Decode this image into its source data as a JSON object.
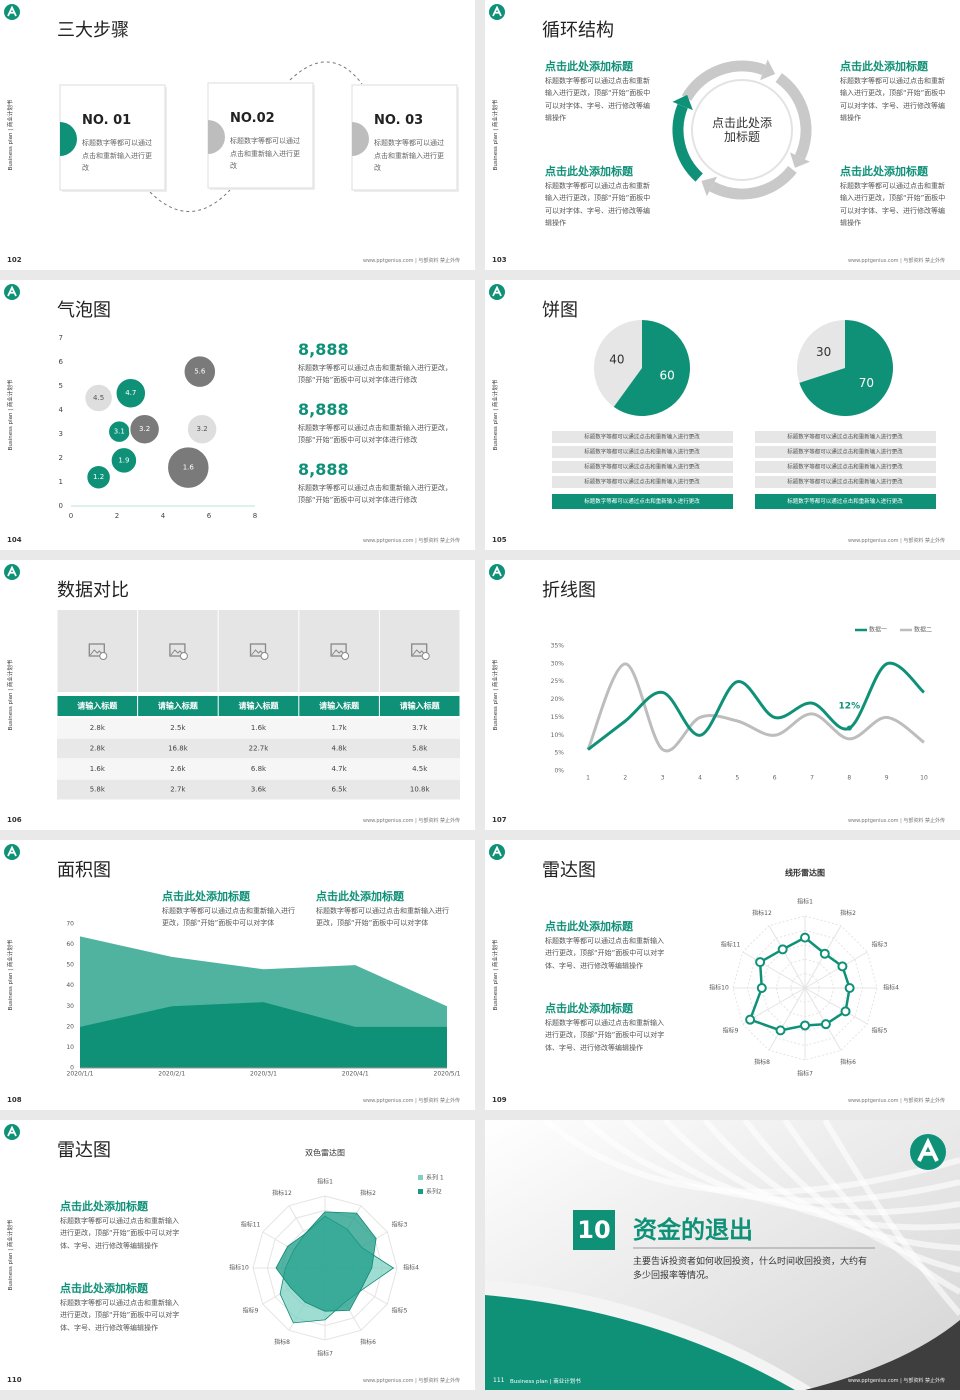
{
  "side_label": "Business plan | 商业计划书",
  "footer": "www.pptgenius.com | 与部资料 禁止外传",
  "slides": [
    {
      "type": "steps",
      "page": "102",
      "title": "三大步骤",
      "steps": [
        {
          "no": "NO. 01",
          "text": "标题数字等都可以通过点击和重新输入进行更改"
        },
        {
          "no": "NO.02",
          "text": "标题数字等都可以通过点击和重新输入进行更改"
        },
        {
          "no": "NO. 03",
          "text": "标题数字等都可以通过点击和重新输入进行更改"
        }
      ]
    },
    {
      "type": "cycle",
      "page": "103",
      "title": "循环结构",
      "center": "点击此处添加标题",
      "blocks": [
        {
          "heading": "点击此处添加标题",
          "text": "标题数字等都可以通过点击和重新输入进行更改，顶部“开始”面板中可以对字体、字号、进行修改等编辑操作"
        },
        {
          "heading": "点击此处添加标题",
          "text": "标题数字等都可以通过点击和重新输入进行更改，顶部“开始”面板中可以对字体、字号、进行修改等编辑操作"
        },
        {
          "heading": "点击此处添加标题",
          "text": "标题数字等都可以通过点击和重新输入进行更改，顶部“开始”面板中可以对字体、字号、进行修改等编辑操作"
        },
        {
          "heading": "点击此处添加标题",
          "text": "标题数字等都可以通过点击和重新输入进行更改，顶部“开始”面板中可以对字体、字号、进行修改等编辑操作"
        }
      ]
    },
    {
      "type": "bubble",
      "page": "104",
      "title": "气泡图",
      "chart": {
        "type": "scatter",
        "xlim": [
          0,
          8
        ],
        "xticks": [
          0,
          2,
          4,
          6,
          8
        ],
        "ylim": [
          0,
          7
        ],
        "yticks": [
          0,
          1,
          2,
          3,
          4,
          5,
          6,
          7
        ],
        "points": [
          {
            "x": 1.2,
            "y": 1.2,
            "size": 12,
            "color": "#0f9178"
          },
          {
            "x": 2.3,
            "y": 1.9,
            "size": 13,
            "color": "#0f9178"
          },
          {
            "x": 2.1,
            "y": 3.1,
            "size": 11,
            "color": "#0f9178"
          },
          {
            "x": 3.2,
            "y": 3.2,
            "size": 15,
            "color": "#7a7a7a"
          },
          {
            "x": 1.2,
            "y": 4.5,
            "size": 14,
            "color": "#dedede"
          },
          {
            "x": 2.6,
            "y": 4.7,
            "size": 15,
            "color": "#0f9178"
          },
          {
            "x": 5.6,
            "y": 5.6,
            "size": 16,
            "color": "#7a7a7a"
          },
          {
            "x": 5.7,
            "y": 3.2,
            "size": 15,
            "color": "#dedede"
          },
          {
            "x": 5.1,
            "y": 1.6,
            "size": 21,
            "color": "#7a7a7a"
          }
        ]
      },
      "stats": [
        {
          "value": "8,888",
          "text": "标题数字等都可以通过点击和重新输入进行更改，顶部“开始”面板中可以对字体进行修改"
        },
        {
          "value": "8,888",
          "text": "标题数字等都可以通过点击和重新输入进行更改，顶部“开始”面板中可以对字体进行修改"
        },
        {
          "value": "8,888",
          "text": "标题数字等都可以通过点击和重新输入进行更改，顶部“开始”面板中可以对字体进行修改"
        }
      ]
    },
    {
      "type": "pies",
      "page": "105",
      "title": "饼图",
      "pies": [
        {
          "values": [
            40,
            60
          ],
          "colors": [
            "#e6e6e6",
            "#0f9178"
          ],
          "rows": [
            "标题数字等都可以通过点击和重新输入进行更改",
            "标题数字等都可以通过点击和重新输入进行更改",
            "标题数字等都可以通过点击和重新输入进行更改",
            "标题数字等都可以通过点击和重新输入进行更改",
            "标题数字等都可以通过点击和重新输入进行更改"
          ]
        },
        {
          "values": [
            30,
            70
          ],
          "colors": [
            "#e6e6e6",
            "#0f9178"
          ],
          "rows": [
            "标题数字等都可以通过点击和重新输入进行更改",
            "标题数字等都可以通过点击和重新输入进行更改",
            "标题数字等都可以通过点击和重新输入进行更改",
            "标题数字等都可以通过点击和重新输入进行更改",
            "标题数字等都可以通过点击和重新输入进行更改"
          ]
        }
      ]
    },
    {
      "type": "table",
      "page": "106",
      "title": "数据对比",
      "table": {
        "header": [
          "请输入标题",
          "请输入标题",
          "请输入标题",
          "请输入标题",
          "请输入标题"
        ],
        "rows": [
          [
            "2.8k",
            "2.5k",
            "1.6k",
            "1.7k",
            "3.7k"
          ],
          [
            "2.8k",
            "16.8k",
            "22.7k",
            "4.8k",
            "5.8k"
          ],
          [
            "1.6k",
            "2.6k",
            "6.8k",
            "4.7k",
            "4.5k"
          ],
          [
            "5.8k",
            "2.7k",
            "3.6k",
            "6.5k",
            "10.8k"
          ]
        ]
      }
    },
    {
      "type": "line",
      "page": "107",
      "title": "折线图",
      "chart": {
        "type": "line",
        "x": [
          1,
          2,
          3,
          4,
          5,
          6,
          7,
          8,
          9,
          10
        ],
        "xlim": [
          1,
          10
        ],
        "xticks": [
          1,
          2,
          3,
          4,
          5,
          6,
          7,
          8,
          9,
          10
        ],
        "ylim": [
          0,
          35
        ],
        "yticks": [
          {
            "value": 0,
            "label": "0%"
          },
          {
            "value": 5,
            "label": "5%"
          },
          {
            "value": 10,
            "label": "10%"
          },
          {
            "value": 15,
            "label": "15%"
          },
          {
            "value": 20,
            "label": "20%"
          },
          {
            "value": 25,
            "label": "25%"
          },
          {
            "value": 30,
            "label": "30%"
          },
          {
            "value": 35,
            "label": "35%"
          }
        ],
        "series": [
          {
            "name": "数据一",
            "color": "#0f9178",
            "values": [
              6,
              14,
              22,
              10,
              25,
              15,
              19,
              12,
              30,
              22
            ],
            "value_labels": [
              null,
              null,
              null,
              null,
              null,
              null,
              null,
              "12%",
              null,
              null
            ]
          },
          {
            "name": "数据二",
            "color": "#bdbdbd",
            "values": [
              6,
              30,
              6,
              15,
              14,
              10,
              16,
              9,
              15,
              8
            ]
          }
        ]
      }
    },
    {
      "type": "area",
      "page": "108",
      "title": "面积图",
      "chart": {
        "type": "area",
        "x": [
          "2020/1/1",
          "2020/2/1",
          "2020/3/1",
          "2020/4/1",
          "2020/5/1"
        ],
        "ylim": [
          0,
          70
        ],
        "yticks": [
          0,
          10,
          20,
          30,
          40,
          50,
          60,
          70
        ],
        "series": [
          {
            "color": "#4fb3a0",
            "values": [
              64,
              54,
              48,
              50,
              30
            ]
          },
          {
            "color": "#0f9178",
            "values": [
              20,
              30,
              32,
              20,
              20
            ]
          }
        ]
      },
      "blocks": [
        {
          "heading": "点击此处添加标题",
          "text": "标题数字等都可以通过点击和重新输入进行更改，顶部“开始”面板中可以对字体"
        },
        {
          "heading": "点击此处添加标题",
          "text": "标题数字等都可以通过点击和重新输入进行更改，顶部“开始”面板中可以对字体"
        }
      ]
    },
    {
      "type": "radar",
      "page": "109",
      "title": "雷达图",
      "chart": {
        "type": "radar",
        "title": "线形雷达图",
        "rlim": [
          0,
          100
        ],
        "categories": [
          "指标1",
          "指标2",
          "指标3",
          "指标4",
          "指标5",
          "指标6",
          "指标7",
          "指标8",
          "指标9",
          "指标10",
          "指标11",
          "指标12"
        ],
        "markers": true,
        "series": [
          {
            "color": "#0f9178",
            "values": [
              70,
              55,
              60,
              62,
              65,
              58,
              52,
              68,
              88,
              60,
              72,
              62
            ]
          }
        ]
      },
      "blocks": [
        {
          "heading": "点击此处添加标题",
          "text": "标题数字等都可以通过点击和重新输入进行更改，顶部“开始”面板中可以对字体、字号、进行修改等编辑操作"
        },
        {
          "heading": "点击此处添加标题",
          "text": "标题数字等都可以通过点击和重新输入进行更改，顶部“开始”面板中可以对字体、字号、进行修改等编辑操作"
        }
      ]
    },
    {
      "type": "radar",
      "page": "110",
      "title": "雷达图",
      "chart": {
        "type": "radar",
        "title": "双色雷达图",
        "rlim": [
          0,
          100
        ],
        "categories": [
          "指标1",
          "指标2",
          "指标3",
          "指标4",
          "指标5",
          "指标6",
          "指标7",
          "指标8",
          "指标9",
          "指标10",
          "指标11",
          "指标12"
        ],
        "markers": false,
        "series": [
          {
            "name": "系列 1",
            "color": "#7fd0c3",
            "values": [
              72,
              62,
              58,
              95,
              60,
              55,
              72,
              88,
              72,
              55,
              50,
              55
            ]
          },
          {
            "name": "系列2",
            "color": "#1a9b85",
            "values": [
              78,
              88,
              82,
              65,
              58,
              68,
              60,
              55,
              55,
              68,
              60,
              55
            ]
          }
        ]
      },
      "blocks": [
        {
          "heading": "点击此处添加标题",
          "text": "标题数字等都可以通过点击和重新输入进行更改，顶部“开始”面板中可以对字体、字号、进行修改等编辑操作"
        },
        {
          "heading": "点击此处添加标题",
          "text": "标题数字等都可以通过点击和重新输入进行更改，顶部“开始”面板中可以对字体、字号、进行修改等编辑操作"
        }
      ]
    },
    {
      "type": "cover",
      "page": "111",
      "number": "10",
      "title": "资金的退出",
      "text": "主要告诉投资者如何收回投资，什么时间收回投资，大约有多少回报率等情况。"
    }
  ]
}
